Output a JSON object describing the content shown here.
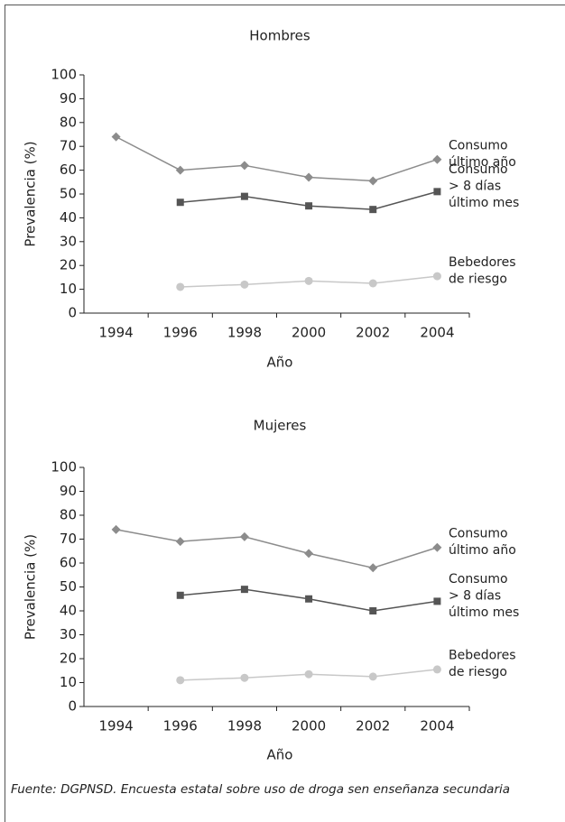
{
  "chart_data": [
    {
      "type": "line",
      "title": "Hombres",
      "xlabel": "Año",
      "ylabel": "Prevalencia (%)",
      "categories": [
        "1994",
        "1996",
        "1998",
        "2000",
        "2002",
        "2004"
      ],
      "ylim": [
        0,
        100
      ],
      "yticks": [
        0,
        10,
        20,
        30,
        40,
        50,
        60,
        70,
        80,
        90,
        100
      ],
      "series": [
        {
          "name_lines": [
            "Consumo",
            "último año"
          ],
          "color": "#8c8c8c",
          "marker": "diamond",
          "values": [
            74,
            60,
            62,
            57,
            55.5,
            64.5
          ]
        },
        {
          "name_lines": [
            "Consumo",
            "> 8 días",
            "último mes"
          ],
          "color": "#555555",
          "marker": "square",
          "values": [
            null,
            46.5,
            49,
            45,
            43.5,
            51
          ]
        },
        {
          "name_lines": [
            "Bebedores",
            "de riesgo"
          ],
          "color": "#c8c8c8",
          "marker": "circle",
          "values": [
            null,
            11,
            12,
            13.5,
            12.5,
            15.5
          ]
        }
      ]
    },
    {
      "type": "line",
      "title": "Mujeres",
      "xlabel": "Año",
      "ylabel": "Prevalencia (%)",
      "categories": [
        "1994",
        "1996",
        "1998",
        "2000",
        "2002",
        "2004"
      ],
      "ylim": [
        0,
        100
      ],
      "yticks": [
        0,
        10,
        20,
        30,
        40,
        50,
        60,
        70,
        80,
        90,
        100
      ],
      "series": [
        {
          "name_lines": [
            "Consumo",
            "último año"
          ],
          "color": "#8c8c8c",
          "marker": "diamond",
          "values": [
            74,
            69,
            71,
            64,
            58,
            66.5
          ]
        },
        {
          "name_lines": [
            "Consumo",
            "> 8 días",
            "último mes"
          ],
          "color": "#555555",
          "marker": "square",
          "values": [
            null,
            46.5,
            49,
            45,
            40,
            44
          ]
        },
        {
          "name_lines": [
            "Bebedores",
            "de riesgo"
          ],
          "color": "#c8c8c8",
          "marker": "circle",
          "values": [
            null,
            11,
            12,
            13.5,
            12.5,
            15.5
          ]
        }
      ]
    }
  ],
  "source": "Fuente: DGPNSD. Encuesta estatal sobre uso de droga sen enseñanza secundaria"
}
